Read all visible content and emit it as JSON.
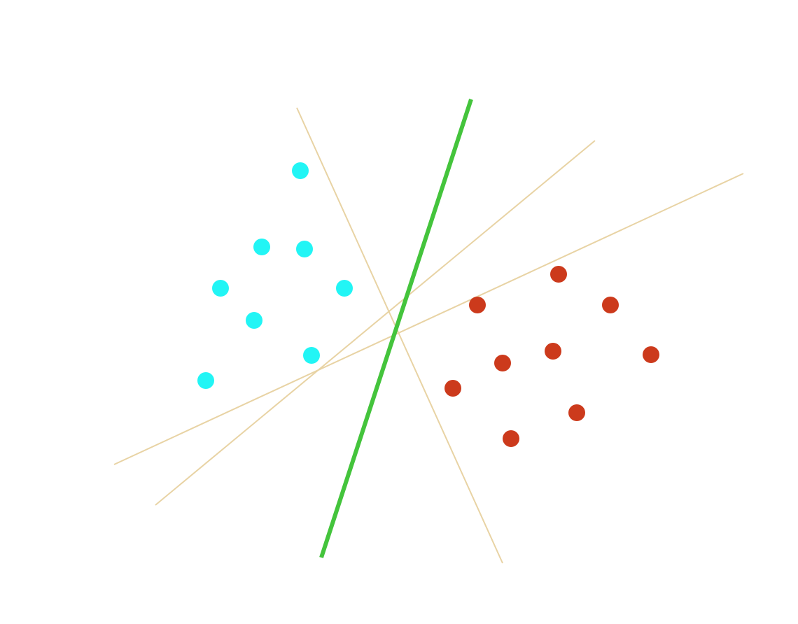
{
  "diagram": {
    "background_color": "#ffffff",
    "class_a_color": "#22f5f5",
    "class_b_color": "#cc3a1c",
    "optimal_separator_color": "#44c43c",
    "candidate_separator_color": "#e8d3a4"
  }
}
